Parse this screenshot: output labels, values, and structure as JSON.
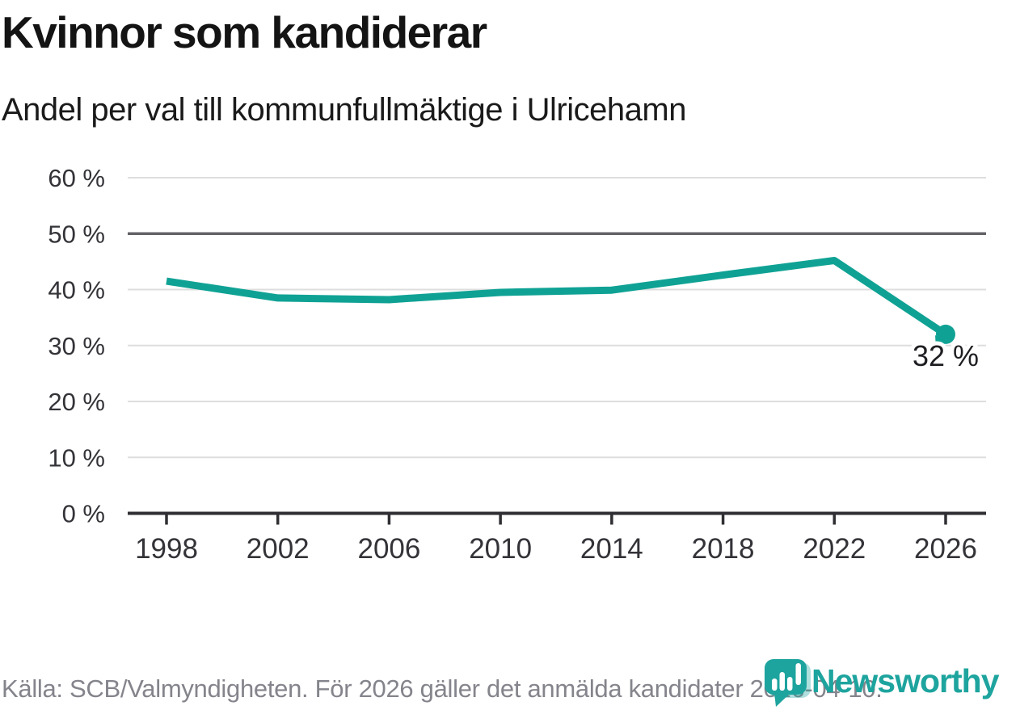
{
  "header": {
    "title": "Kvinnor som kandiderar",
    "subtitle": "Andel per val till kommunfullmäktige i Ulricehamn"
  },
  "chart_data": {
    "type": "line",
    "title": "Kvinnor som kandiderar",
    "subtitle": "Andel per val till kommunfullmäktige i Ulricehamn",
    "categories": [
      1998,
      2002,
      2006,
      2010,
      2014,
      2018,
      2022,
      2026
    ],
    "x_tick_labels": [
      "1998",
      "2002",
      "2006",
      "2010",
      "2014",
      "2018",
      "2022",
      "2026"
    ],
    "values": [
      41.5,
      38.5,
      38.2,
      39.5,
      39.9,
      42.6,
      45.2,
      32
    ],
    "end_label": "32 %",
    "y_ticks": [
      0,
      10,
      20,
      30,
      40,
      50,
      60
    ],
    "y_tick_labels": [
      "0 %",
      "10 %",
      "20 %",
      "30 %",
      "40 %",
      "50 %",
      "60 %"
    ],
    "ylim": [
      0,
      63
    ],
    "grid": "horizontal",
    "emphasized_gridline": 50,
    "legend": "none",
    "xlabel": "",
    "ylabel": ""
  },
  "colors": {
    "line": "#0FA294",
    "marker": "#0FA294",
    "axis": "#2F2F33",
    "grid_light": "#DEDEDE",
    "grid_dark": "#636367",
    "tick_label": "#333338",
    "footer_text": "#84848C",
    "logo_teal": "#1EA49E"
  },
  "footer": {
    "source": "Källa: SCB/Valmyndigheten. För 2026 gäller det anmälda kandidater 2026-04-10.",
    "logo_text": "Newsworthy"
  }
}
